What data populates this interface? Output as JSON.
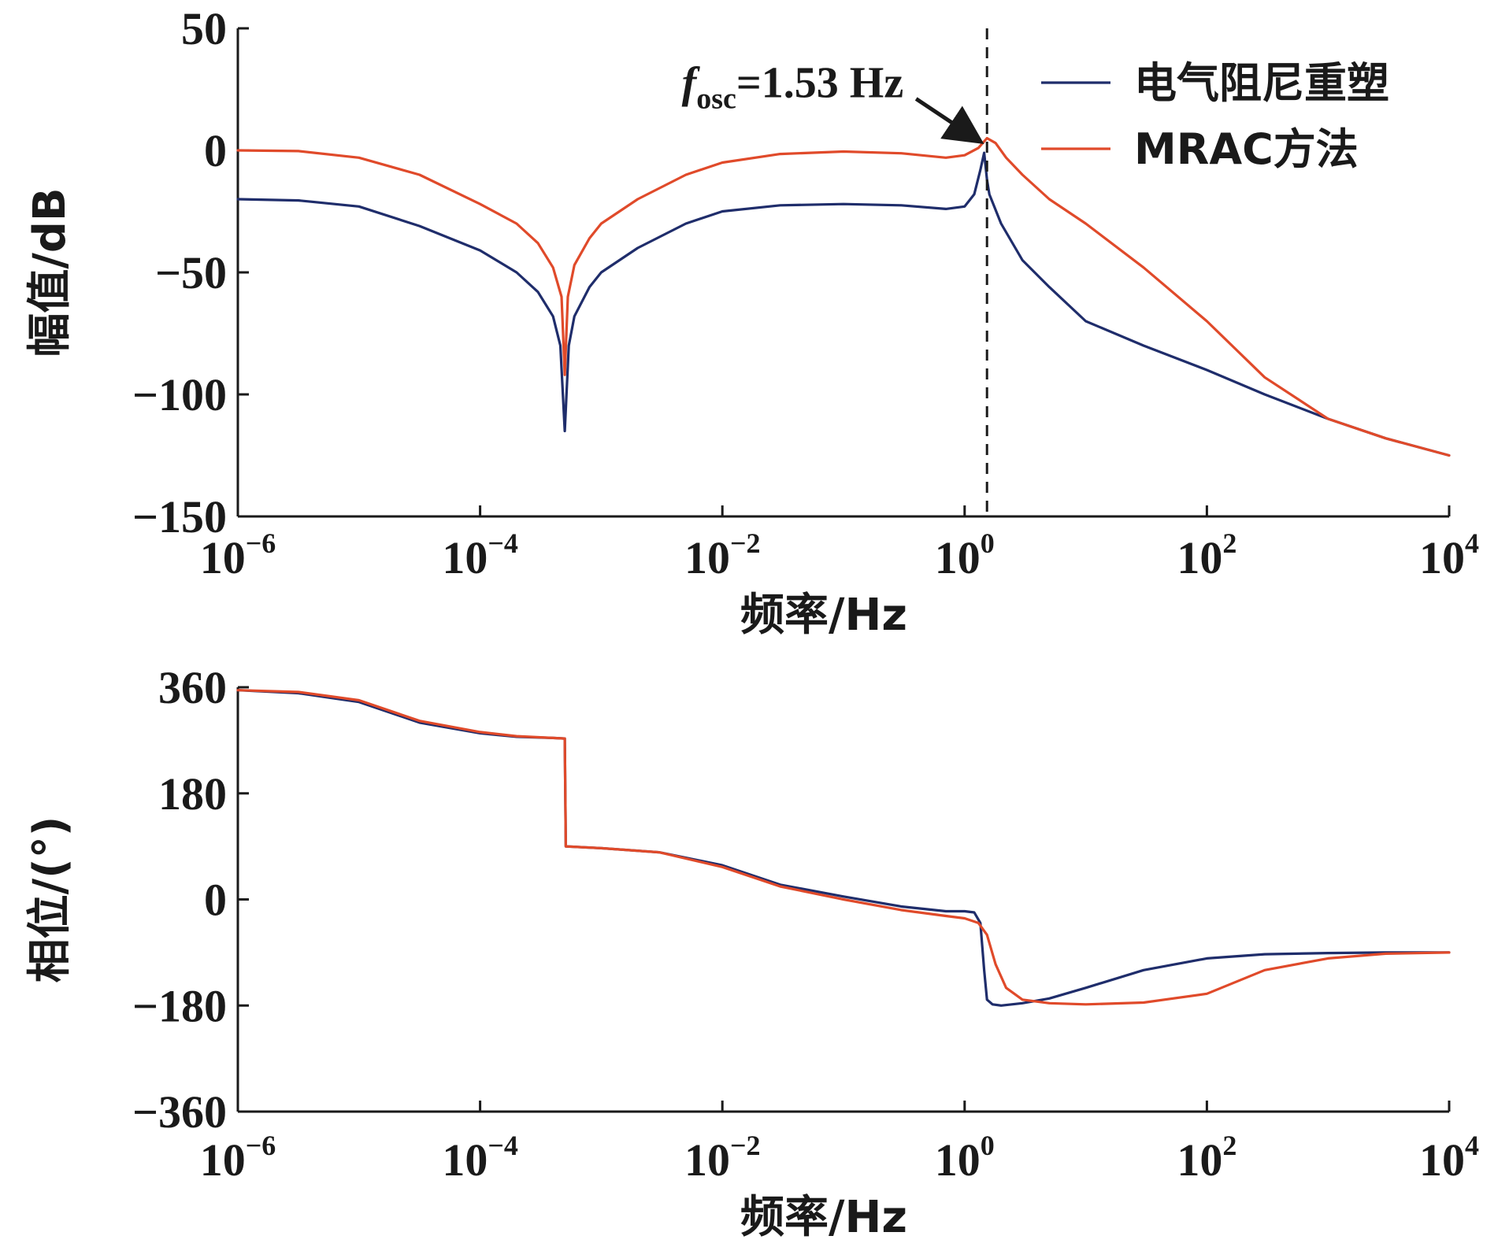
{
  "chart_data": [
    {
      "type": "line",
      "title": "",
      "xlabel": "频率/Hz",
      "ylabel": "幅值/dB",
      "xscale": "log",
      "xlim": [
        1e-06,
        10000
      ],
      "ylim": [
        -150,
        50
      ],
      "yticks": [
        "50",
        "0",
        "-50",
        "-100",
        "-150"
      ],
      "xticks": [
        {
          "base": "10",
          "exp": "−6"
        },
        {
          "base": "10",
          "exp": "−4"
        },
        {
          "base": "10",
          "exp": "−2"
        },
        {
          "base": "10",
          "exp": "0"
        },
        {
          "base": "10",
          "exp": "2"
        },
        {
          "base": "10",
          "exp": "4"
        }
      ],
      "legend": {
        "placement": "top-right",
        "entries": [
          {
            "label": "电气阻尼重塑",
            "color": "#1f2d6b"
          },
          {
            "label": "MRAC方法",
            "color": "#e04a2a"
          }
        ]
      },
      "annotation": {
        "symbol": "f",
        "sub": "osc",
        "text": "=1.53 Hz",
        "x": 1.53
      },
      "series": [
        {
          "name": "电气阻尼重塑",
          "color": "#1f2d6b",
          "points": [
            [
              1e-06,
              -20
            ],
            [
              3.16e-06,
              -20.5
            ],
            [
              1e-05,
              -23
            ],
            [
              3.16e-05,
              -31
            ],
            [
              0.0001,
              -41
            ],
            [
              0.0002,
              -50
            ],
            [
              0.0003,
              -58
            ],
            [
              0.0004,
              -68
            ],
            [
              0.00046,
              -80
            ],
            [
              0.0005,
              -115
            ],
            [
              0.00054,
              -80
            ],
            [
              0.0006,
              -68
            ],
            [
              0.0008,
              -56
            ],
            [
              0.001,
              -50
            ],
            [
              0.002,
              -40
            ],
            [
              0.005,
              -30
            ],
            [
              0.01,
              -25
            ],
            [
              0.03,
              -22.5
            ],
            [
              0.1,
              -22
            ],
            [
              0.3,
              -22.5
            ],
            [
              0.7,
              -24
            ],
            [
              1.0,
              -23
            ],
            [
              1.2,
              -18
            ],
            [
              1.35,
              -8
            ],
            [
              1.45,
              -1
            ],
            [
              1.53,
              -12
            ],
            [
              1.6,
              -18
            ],
            [
              2.0,
              -30
            ],
            [
              3.0,
              -45
            ],
            [
              5.0,
              -56
            ],
            [
              10,
              -70
            ],
            [
              30,
              -80
            ],
            [
              100,
              -90
            ],
            [
              300,
              -100
            ],
            [
              1000,
              -110
            ],
            [
              3000,
              -118
            ],
            [
              10000,
              -125
            ]
          ]
        },
        {
          "name": "MRAC方法",
          "color": "#e04a2a",
          "points": [
            [
              1e-06,
              0
            ],
            [
              3.16e-06,
              -0.3
            ],
            [
              1e-05,
              -3
            ],
            [
              3.16e-05,
              -10
            ],
            [
              0.0001,
              -22
            ],
            [
              0.0002,
              -30
            ],
            [
              0.0003,
              -38
            ],
            [
              0.0004,
              -48
            ],
            [
              0.00047,
              -60
            ],
            [
              0.0005,
              -92
            ],
            [
              0.00053,
              -60
            ],
            [
              0.0006,
              -47
            ],
            [
              0.0008,
              -36
            ],
            [
              0.001,
              -30
            ],
            [
              0.002,
              -20
            ],
            [
              0.005,
              -10
            ],
            [
              0.01,
              -5
            ],
            [
              0.03,
              -1.5
            ],
            [
              0.1,
              -0.5
            ],
            [
              0.3,
              -1.2
            ],
            [
              0.7,
              -3
            ],
            [
              1.0,
              -2
            ],
            [
              1.3,
              1
            ],
            [
              1.53,
              5
            ],
            [
              1.8,
              3
            ],
            [
              2.2,
              -3
            ],
            [
              3.0,
              -10
            ],
            [
              5.0,
              -20
            ],
            [
              10,
              -30
            ],
            [
              30,
              -48
            ],
            [
              100,
              -70
            ],
            [
              300,
              -93
            ],
            [
              1000,
              -110
            ],
            [
              3000,
              -118
            ],
            [
              10000,
              -125
            ]
          ]
        }
      ]
    },
    {
      "type": "line",
      "title": "",
      "xlabel": "频率/Hz",
      "ylabel": "相位/(°)",
      "xscale": "log",
      "xlim": [
        1e-06,
        10000
      ],
      "ylim": [
        -360,
        360
      ],
      "yticks": [
        "360",
        "180",
        "0",
        "-180",
        "-360"
      ],
      "xticks": [
        {
          "base": "10",
          "exp": "−6"
        },
        {
          "base": "10",
          "exp": "−4"
        },
        {
          "base": "10",
          "exp": "−2"
        },
        {
          "base": "10",
          "exp": "0"
        },
        {
          "base": "10",
          "exp": "2"
        },
        {
          "base": "10",
          "exp": "4"
        }
      ],
      "series": [
        {
          "name": "电气阻尼重塑",
          "color": "#1f2d6b",
          "points": [
            [
              1e-06,
              355
            ],
            [
              3.16e-06,
              350
            ],
            [
              1e-05,
              335
            ],
            [
              3.16e-05,
              300
            ],
            [
              0.0001,
              282
            ],
            [
              0.0002,
              276
            ],
            [
              0.0004,
              274
            ],
            [
              0.0005,
              273
            ],
            [
              0.00051,
              90
            ],
            [
              0.001,
              87
            ],
            [
              0.003,
              80
            ],
            [
              0.01,
              58
            ],
            [
              0.03,
              25
            ],
            [
              0.1,
              5
            ],
            [
              0.3,
              -12
            ],
            [
              0.7,
              -20
            ],
            [
              1.0,
              -20
            ],
            [
              1.2,
              -22
            ],
            [
              1.35,
              -40
            ],
            [
              1.45,
              -120
            ],
            [
              1.53,
              -170
            ],
            [
              1.7,
              -178
            ],
            [
              2.0,
              -180
            ],
            [
              3.0,
              -176
            ],
            [
              5.0,
              -168
            ],
            [
              10,
              -150
            ],
            [
              30,
              -120
            ],
            [
              100,
              -100
            ],
            [
              300,
              -93
            ],
            [
              1000,
              -91
            ],
            [
              3000,
              -90
            ],
            [
              10000,
              -90
            ]
          ]
        },
        {
          "name": "MRAC方法",
          "color": "#e04a2a",
          "points": [
            [
              1e-06,
              355
            ],
            [
              3.16e-06,
              352
            ],
            [
              1e-05,
              338
            ],
            [
              3.16e-05,
              303
            ],
            [
              0.0001,
              284
            ],
            [
              0.0002,
              277
            ],
            [
              0.0004,
              274
            ],
            [
              0.0005,
              273
            ],
            [
              0.00051,
              90
            ],
            [
              0.001,
              87
            ],
            [
              0.003,
              80
            ],
            [
              0.01,
              55
            ],
            [
              0.03,
              22
            ],
            [
              0.1,
              0
            ],
            [
              0.3,
              -18
            ],
            [
              0.7,
              -28
            ],
            [
              1.0,
              -32
            ],
            [
              1.3,
              -40
            ],
            [
              1.53,
              -60
            ],
            [
              1.8,
              -110
            ],
            [
              2.2,
              -150
            ],
            [
              3.0,
              -170
            ],
            [
              5.0,
              -176
            ],
            [
              10,
              -178
            ],
            [
              30,
              -175
            ],
            [
              100,
              -160
            ],
            [
              300,
              -120
            ],
            [
              1000,
              -100
            ],
            [
              3000,
              -92
            ],
            [
              10000,
              -90
            ]
          ]
        }
      ]
    }
  ]
}
